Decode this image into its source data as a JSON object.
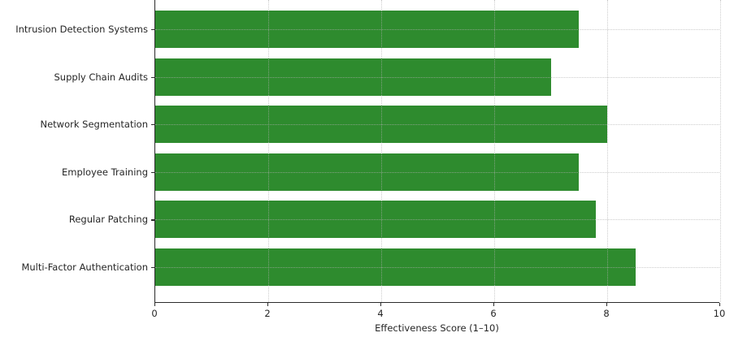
{
  "chart_data": {
    "type": "bar",
    "orientation": "horizontal",
    "title": "",
    "xlabel": "Effectiveness Score (1–10)",
    "ylabel": "",
    "categories": [
      "Intrusion Detection Systems",
      "Supply Chain Audits",
      "Network Segmentation",
      "Employee Training",
      "Regular Patching",
      "Multi-Factor Authentication"
    ],
    "values": [
      7.5,
      7.0,
      8.0,
      7.5,
      7.8,
      8.5
    ],
    "categories_order": "top-to-bottom",
    "xlim": [
      0,
      10
    ],
    "x_ticks": [
      0,
      2,
      4,
      6,
      8,
      10
    ],
    "grid": "dotted, x and y, drawn over bars",
    "legend_position": "none",
    "colors": {
      "bar": "#2e8b2e",
      "spine": "#2b2b2b",
      "gridline": "#b0b0b0",
      "text": "#262626",
      "background": "#ffffff"
    }
  }
}
